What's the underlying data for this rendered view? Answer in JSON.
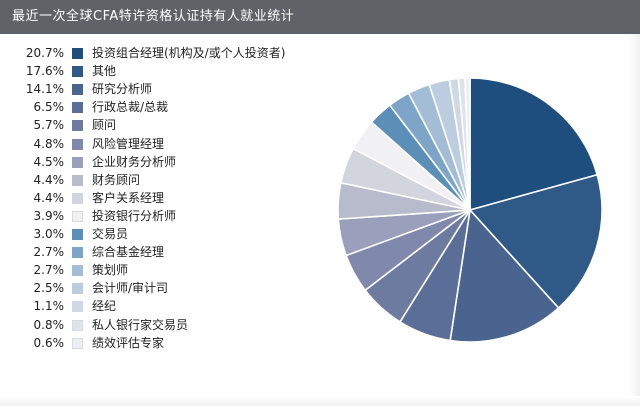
{
  "chart_data": {
    "type": "pie",
    "title": "最近一次全球CFA特许资格认证持有人就业统计",
    "slices": [
      {
        "label": "投资组合经理(机构及/或个人投资者)",
        "value": 20.7,
        "value_text": "20.7%",
        "color": "#1d4e7e"
      },
      {
        "label": "其他",
        "value": 17.6,
        "value_text": "17.6%",
        "color": "#2f5a87"
      },
      {
        "label": "研究分析师",
        "value": 14.1,
        "value_text": "14.1%",
        "color": "#4a6490"
      },
      {
        "label": "行政总裁/总裁",
        "value": 6.5,
        "value_text": "6.5%",
        "color": "#5b6e97"
      },
      {
        "label": "顾问",
        "value": 5.7,
        "value_text": "5.7%",
        "color": "#6d7ba1"
      },
      {
        "label": "风险管理经理",
        "value": 4.8,
        "value_text": "4.8%",
        "color": "#8089ab"
      },
      {
        "label": "企业财务分析师",
        "value": 4.5,
        "value_text": "4.5%",
        "color": "#9aa0bb"
      },
      {
        "label": "财务顾问",
        "value": 4.4,
        "value_text": "4.4%",
        "color": "#b7bbcc"
      },
      {
        "label": "客户关系经理",
        "value": 4.4,
        "value_text": "4.4%",
        "color": "#d2d4de"
      },
      {
        "label": "投资银行分析师",
        "value": 3.9,
        "value_text": "3.9%",
        "color": "#f1f1f3"
      },
      {
        "label": "交易员",
        "value": 3.0,
        "value_text": "3.0%",
        "color": "#5b8fb8"
      },
      {
        "label": "综合基金经理",
        "value": 2.7,
        "value_text": "2.7%",
        "color": "#7ea5c8"
      },
      {
        "label": "策划师",
        "value": 2.7,
        "value_text": "2.7%",
        "color": "#a3bdd6"
      },
      {
        "label": "会计师/审计司",
        "value": 2.5,
        "value_text": "2.5%",
        "color": "#bdcde0"
      },
      {
        "label": "经纪",
        "value": 1.1,
        "value_text": "1.1%",
        "color": "#cfd9e5"
      },
      {
        "label": "私人银行家交易员",
        "value": 0.8,
        "value_text": "0.8%",
        "color": "#dde3ea"
      },
      {
        "label": "绩效评估专家",
        "value": 0.6,
        "value_text": "0.6%",
        "color": "#ebeef2"
      }
    ],
    "legend_placement": "left",
    "start_angle_deg": 0,
    "direction": "clockwise"
  },
  "colors": {
    "title_bar": "#5f6367",
    "slice_border": "#ffffff"
  }
}
